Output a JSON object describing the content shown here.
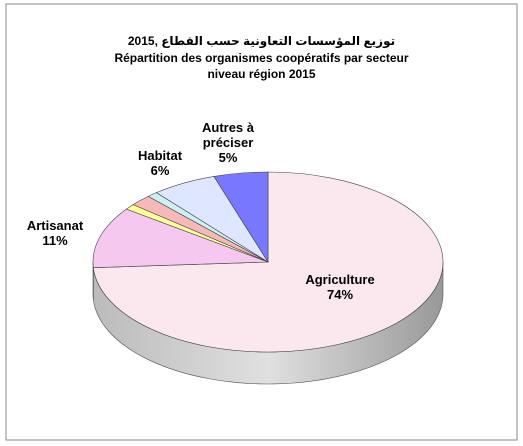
{
  "chart_data": {
    "type": "pie3d",
    "title": "توزيع المؤسسات التعاونية حسب القطاع ,2015",
    "subtitle": [
      "Répartition des organismes coopératifs par secteur",
      "niveau région 2015"
    ],
    "categories": [
      "Agriculture",
      "Artisanat",
      null,
      null,
      null,
      "Habitat",
      "Autres à préciser"
    ],
    "values": [
      74,
      11,
      1,
      2,
      1,
      6,
      5
    ],
    "value_labels": [
      "74%",
      "11%",
      null,
      null,
      null,
      "6%",
      "5%"
    ],
    "colors": [
      "#fbe8ee",
      "#f5c8f0",
      "#ffff99",
      "#f6b8b8",
      "#cdf0f0",
      "#dfe6ff",
      "#7878ff"
    ]
  }
}
